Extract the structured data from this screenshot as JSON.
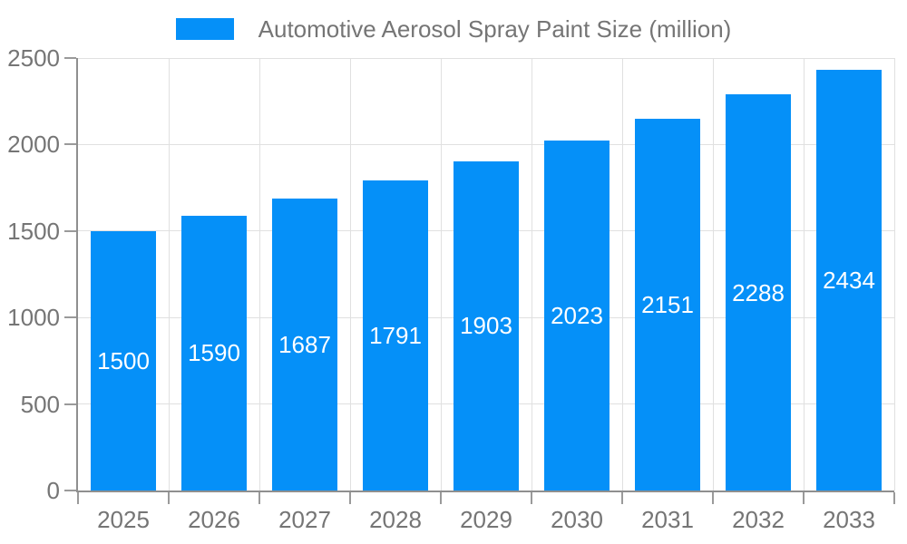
{
  "legend": {
    "label": "Automotive Aerosol Spray Paint Size (million)"
  },
  "chart_data": {
    "type": "bar",
    "title": "Automotive Aerosol Spray Paint Size (million)",
    "series_name": "Automotive Aerosol Spray Paint Size (million)",
    "categories": [
      "2025",
      "2026",
      "2027",
      "2028",
      "2029",
      "2030",
      "2031",
      "2032",
      "2033"
    ],
    "values": [
      1500,
      1590,
      1687,
      1791,
      1903,
      2023,
      2151,
      2288,
      2434
    ],
    "xlabel": "",
    "ylabel": "",
    "ylim": [
      0,
      2500
    ],
    "yticks": [
      0,
      500,
      1000,
      1500,
      2000,
      2500
    ],
    "grid": true,
    "value_labels": "inside-center",
    "legend_position": "top-center",
    "colors": {
      "bar": "#0590F8",
      "value_label": "#FFFFFF",
      "axis_text": "#757575",
      "axis_line": "#8F8F8F",
      "tick_mark": "#9A9A9A",
      "gridline": "#E0E0E0",
      "background": "#FFFFFF"
    }
  }
}
